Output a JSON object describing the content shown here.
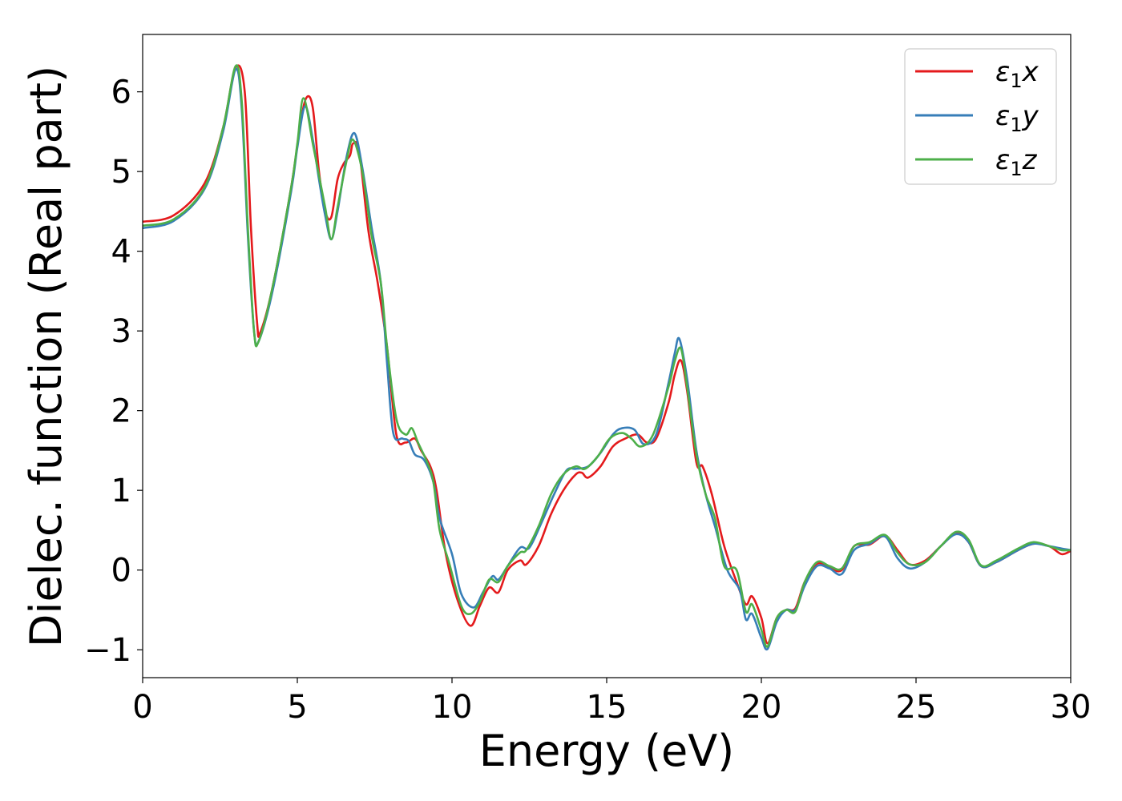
{
  "chart_data": {
    "type": "line",
    "xlabel": "Energy (eV)",
    "ylabel": "Dielec. function (Real part)",
    "xlim": [
      0,
      30
    ],
    "ylim": [
      -1.35,
      6.72
    ],
    "xticks": [
      0,
      5,
      10,
      15,
      20,
      25,
      30
    ],
    "xtick_labels": [
      "0",
      "5",
      "10",
      "15",
      "20",
      "25",
      "30"
    ],
    "yticks": [
      -1,
      0,
      1,
      2,
      3,
      4,
      5,
      6
    ],
    "ytick_labels": [
      "−1",
      "0",
      "1",
      "2",
      "3",
      "4",
      "5",
      "6"
    ],
    "grid": false,
    "legend_position": "top-right",
    "series": [
      {
        "name": "ε₁x",
        "legend_main": "ε",
        "legend_sub": "1",
        "legend_tail": "x",
        "color": "#e41a1c",
        "points": [
          [
            0,
            4.37
          ],
          [
            1,
            4.45
          ],
          [
            2,
            4.85
          ],
          [
            2.6,
            5.55
          ],
          [
            3.0,
            6.3
          ],
          [
            3.3,
            6.0
          ],
          [
            3.5,
            4.3
          ],
          [
            3.7,
            3.1
          ],
          [
            3.8,
            2.98
          ],
          [
            4.2,
            3.55
          ],
          [
            4.8,
            4.8
          ],
          [
            5.1,
            5.6
          ],
          [
            5.3,
            5.93
          ],
          [
            5.5,
            5.8
          ],
          [
            5.7,
            5.0
          ],
          [
            5.9,
            4.5
          ],
          [
            6.1,
            4.43
          ],
          [
            6.3,
            4.9
          ],
          [
            6.5,
            5.1
          ],
          [
            6.7,
            5.2
          ],
          [
            6.8,
            5.35
          ],
          [
            7.0,
            5.25
          ],
          [
            7.3,
            4.25
          ],
          [
            7.6,
            3.6
          ],
          [
            7.9,
            2.8
          ],
          [
            8.2,
            1.7
          ],
          [
            8.5,
            1.6
          ],
          [
            8.8,
            1.65
          ],
          [
            9.0,
            1.5
          ],
          [
            9.3,
            1.3
          ],
          [
            9.5,
            1.0
          ],
          [
            9.8,
            0.2
          ],
          [
            10.2,
            -0.4
          ],
          [
            10.6,
            -0.7
          ],
          [
            10.9,
            -0.45
          ],
          [
            11.2,
            -0.22
          ],
          [
            11.5,
            -0.28
          ],
          [
            11.8,
            0.0
          ],
          [
            12.2,
            0.12
          ],
          [
            12.4,
            0.07
          ],
          [
            12.8,
            0.3
          ],
          [
            13.2,
            0.7
          ],
          [
            13.6,
            1.0
          ],
          [
            14.0,
            1.2
          ],
          [
            14.2,
            1.22
          ],
          [
            14.4,
            1.16
          ],
          [
            14.8,
            1.3
          ],
          [
            15.2,
            1.55
          ],
          [
            15.6,
            1.65
          ],
          [
            16.0,
            1.7
          ],
          [
            16.3,
            1.6
          ],
          [
            16.6,
            1.65
          ],
          [
            17.0,
            2.1
          ],
          [
            17.2,
            2.45
          ],
          [
            17.4,
            2.63
          ],
          [
            17.6,
            2.25
          ],
          [
            17.9,
            1.35
          ],
          [
            18.1,
            1.3
          ],
          [
            18.4,
            0.95
          ],
          [
            18.8,
            0.3
          ],
          [
            19.2,
            -0.15
          ],
          [
            19.5,
            -0.43
          ],
          [
            19.7,
            -0.33
          ],
          [
            20.0,
            -0.6
          ],
          [
            20.2,
            -0.92
          ],
          [
            20.5,
            -0.6
          ],
          [
            20.8,
            -0.5
          ],
          [
            21.1,
            -0.48
          ],
          [
            21.4,
            -0.15
          ],
          [
            21.8,
            0.08
          ],
          [
            22.2,
            0.03
          ],
          [
            22.6,
            0.0
          ],
          [
            23.0,
            0.3
          ],
          [
            23.5,
            0.32
          ],
          [
            24.0,
            0.43
          ],
          [
            24.4,
            0.25
          ],
          [
            24.8,
            0.07
          ],
          [
            25.3,
            0.12
          ],
          [
            25.8,
            0.3
          ],
          [
            26.3,
            0.46
          ],
          [
            26.7,
            0.35
          ],
          [
            27.1,
            0.05
          ],
          [
            27.6,
            0.1
          ],
          [
            28.3,
            0.25
          ],
          [
            28.8,
            0.33
          ],
          [
            29.3,
            0.3
          ],
          [
            29.7,
            0.2
          ],
          [
            30,
            0.24
          ]
        ]
      },
      {
        "name": "ε₁y",
        "legend_main": "ε",
        "legend_sub": "1",
        "legend_tail": "y",
        "color": "#377eb8",
        "points": [
          [
            0,
            4.29
          ],
          [
            1,
            4.38
          ],
          [
            2,
            4.78
          ],
          [
            2.6,
            5.5
          ],
          [
            3.0,
            6.28
          ],
          [
            3.2,
            5.8
          ],
          [
            3.4,
            4.2
          ],
          [
            3.6,
            3.0
          ],
          [
            3.75,
            2.87
          ],
          [
            4.2,
            3.5
          ],
          [
            4.8,
            4.75
          ],
          [
            5.0,
            5.3
          ],
          [
            5.25,
            5.82
          ],
          [
            5.5,
            5.4
          ],
          [
            5.7,
            4.9
          ],
          [
            5.9,
            4.45
          ],
          [
            6.1,
            4.15
          ],
          [
            6.3,
            4.5
          ],
          [
            6.6,
            5.2
          ],
          [
            6.85,
            5.48
          ],
          [
            7.1,
            5.05
          ],
          [
            7.4,
            4.3
          ],
          [
            7.7,
            3.6
          ],
          [
            7.9,
            2.6
          ],
          [
            8.1,
            1.72
          ],
          [
            8.4,
            1.65
          ],
          [
            8.6,
            1.62
          ],
          [
            8.8,
            1.45
          ],
          [
            9.1,
            1.38
          ],
          [
            9.4,
            1.1
          ],
          [
            9.6,
            0.65
          ],
          [
            10.0,
            0.2
          ],
          [
            10.3,
            -0.3
          ],
          [
            10.7,
            -0.47
          ],
          [
            11.0,
            -0.28
          ],
          [
            11.3,
            -0.08
          ],
          [
            11.5,
            -0.12
          ],
          [
            11.8,
            0.05
          ],
          [
            12.2,
            0.28
          ],
          [
            12.5,
            0.28
          ],
          [
            12.9,
            0.6
          ],
          [
            13.3,
            0.95
          ],
          [
            13.7,
            1.25
          ],
          [
            14.0,
            1.27
          ],
          [
            14.4,
            1.3
          ],
          [
            14.8,
            1.47
          ],
          [
            15.2,
            1.7
          ],
          [
            15.5,
            1.78
          ],
          [
            15.9,
            1.76
          ],
          [
            16.2,
            1.58
          ],
          [
            16.6,
            1.7
          ],
          [
            17.0,
            2.35
          ],
          [
            17.2,
            2.72
          ],
          [
            17.35,
            2.9
          ],
          [
            17.6,
            2.4
          ],
          [
            17.9,
            1.5
          ],
          [
            18.2,
            0.95
          ],
          [
            18.5,
            0.55
          ],
          [
            18.9,
            0.0
          ],
          [
            19.3,
            -0.25
          ],
          [
            19.5,
            -0.62
          ],
          [
            19.7,
            -0.55
          ],
          [
            20.0,
            -0.85
          ],
          [
            20.2,
            -0.99
          ],
          [
            20.5,
            -0.65
          ],
          [
            20.8,
            -0.5
          ],
          [
            21.1,
            -0.5
          ],
          [
            21.4,
            -0.2
          ],
          [
            21.8,
            0.05
          ],
          [
            22.2,
            0.02
          ],
          [
            22.6,
            -0.05
          ],
          [
            23.0,
            0.25
          ],
          [
            23.5,
            0.33
          ],
          [
            24.0,
            0.42
          ],
          [
            24.4,
            0.15
          ],
          [
            24.8,
            0.02
          ],
          [
            25.3,
            0.1
          ],
          [
            25.8,
            0.3
          ],
          [
            26.3,
            0.45
          ],
          [
            26.7,
            0.35
          ],
          [
            27.1,
            0.05
          ],
          [
            27.6,
            0.1
          ],
          [
            28.3,
            0.25
          ],
          [
            28.8,
            0.33
          ],
          [
            29.3,
            0.3
          ],
          [
            29.7,
            0.27
          ],
          [
            30,
            0.25
          ]
        ]
      },
      {
        "name": "ε₁z",
        "legend_main": "ε",
        "legend_sub": "1",
        "legend_tail": "z",
        "color": "#4daf4a",
        "points": [
          [
            0,
            4.32
          ],
          [
            1,
            4.4
          ],
          [
            2,
            4.8
          ],
          [
            2.6,
            5.55
          ],
          [
            3.0,
            6.32
          ],
          [
            3.2,
            5.9
          ],
          [
            3.4,
            4.3
          ],
          [
            3.6,
            3.0
          ],
          [
            3.75,
            2.87
          ],
          [
            4.2,
            3.55
          ],
          [
            4.8,
            4.8
          ],
          [
            5.0,
            5.35
          ],
          [
            5.2,
            5.92
          ],
          [
            5.5,
            5.35
          ],
          [
            5.7,
            4.95
          ],
          [
            5.9,
            4.55
          ],
          [
            6.1,
            4.15
          ],
          [
            6.3,
            4.55
          ],
          [
            6.6,
            5.15
          ],
          [
            6.8,
            5.4
          ],
          [
            7.1,
            5.0
          ],
          [
            7.4,
            4.2
          ],
          [
            7.7,
            3.6
          ],
          [
            7.9,
            2.8
          ],
          [
            8.2,
            1.9
          ],
          [
            8.5,
            1.7
          ],
          [
            8.7,
            1.78
          ],
          [
            8.9,
            1.6
          ],
          [
            9.2,
            1.35
          ],
          [
            9.4,
            1.1
          ],
          [
            9.6,
            0.5
          ],
          [
            9.9,
            0.1
          ],
          [
            10.3,
            -0.45
          ],
          [
            10.6,
            -0.55
          ],
          [
            10.9,
            -0.4
          ],
          [
            11.2,
            -0.12
          ],
          [
            11.5,
            -0.15
          ],
          [
            11.8,
            0.05
          ],
          [
            12.2,
            0.22
          ],
          [
            12.4,
            0.25
          ],
          [
            12.8,
            0.55
          ],
          [
            13.2,
            0.95
          ],
          [
            13.6,
            1.2
          ],
          [
            14.0,
            1.3
          ],
          [
            14.3,
            1.27
          ],
          [
            14.7,
            1.42
          ],
          [
            15.1,
            1.65
          ],
          [
            15.5,
            1.72
          ],
          [
            15.8,
            1.65
          ],
          [
            16.1,
            1.55
          ],
          [
            16.5,
            1.7
          ],
          [
            17.0,
            2.3
          ],
          [
            17.2,
            2.62
          ],
          [
            17.4,
            2.78
          ],
          [
            17.6,
            2.3
          ],
          [
            17.9,
            1.45
          ],
          [
            18.2,
            0.95
          ],
          [
            18.5,
            0.65
          ],
          [
            18.8,
            0.05
          ],
          [
            19.2,
            0.0
          ],
          [
            19.5,
            -0.52
          ],
          [
            19.7,
            -0.43
          ],
          [
            20.0,
            -0.75
          ],
          [
            20.2,
            -0.96
          ],
          [
            20.5,
            -0.6
          ],
          [
            20.8,
            -0.5
          ],
          [
            21.1,
            -0.52
          ],
          [
            21.4,
            -0.15
          ],
          [
            21.8,
            0.1
          ],
          [
            22.2,
            0.05
          ],
          [
            22.6,
            0.02
          ],
          [
            23.0,
            0.3
          ],
          [
            23.5,
            0.35
          ],
          [
            24.0,
            0.44
          ],
          [
            24.4,
            0.22
          ],
          [
            24.8,
            0.07
          ],
          [
            25.3,
            0.1
          ],
          [
            25.8,
            0.3
          ],
          [
            26.3,
            0.48
          ],
          [
            26.7,
            0.38
          ],
          [
            27.1,
            0.06
          ],
          [
            27.6,
            0.12
          ],
          [
            28.3,
            0.27
          ],
          [
            28.8,
            0.35
          ],
          [
            29.3,
            0.3
          ],
          [
            29.7,
            0.25
          ],
          [
            30,
            0.25
          ]
        ]
      }
    ]
  }
}
